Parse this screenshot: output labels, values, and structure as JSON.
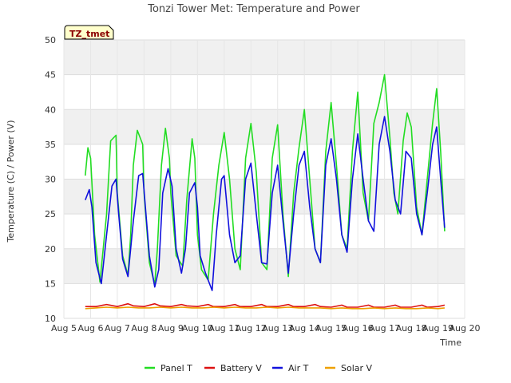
{
  "chart_data": {
    "type": "line",
    "title": "Tonzi Tower Met: Temperature and Power",
    "xlabel": "Time",
    "ylabel": "Temperature (C) / Power (V)",
    "ylim": [
      10,
      50
    ],
    "xlim": [
      5,
      20
    ],
    "yticks": [
      10,
      15,
      20,
      25,
      30,
      35,
      40,
      45,
      50
    ],
    "xticks": [
      5,
      6,
      7,
      8,
      9,
      10,
      11,
      12,
      13,
      14,
      15,
      16,
      17,
      18,
      19,
      20
    ],
    "xtick_labels": [
      "Aug 5",
      "Aug 6",
      "Aug 7",
      "Aug 8",
      "Aug 9",
      "Aug 10",
      "Aug 11",
      "Aug 12",
      "Aug 13",
      "Aug 14",
      "Aug 15",
      "Aug 16",
      "Aug 17",
      "Aug 18",
      "Aug 19",
      "Aug 20"
    ],
    "badge": "TZ_tmet",
    "grid": true,
    "legend_position": "bottom",
    "series": [
      {
        "name": "Panel T",
        "color": "#22dd22",
        "x": [
          5.8,
          5.9,
          6.0,
          6.15,
          6.35,
          6.6,
          6.75,
          6.95,
          7.0,
          7.2,
          7.4,
          7.5,
          7.6,
          7.75,
          7.95,
          8.0,
          8.2,
          8.4,
          8.5,
          8.65,
          8.8,
          8.95,
          9.0,
          9.2,
          9.45,
          9.6,
          9.8,
          9.9,
          10.0,
          10.15,
          10.4,
          10.6,
          10.8,
          11.0,
          11.2,
          11.4,
          11.6,
          11.8,
          12.0,
          12.2,
          12.4,
          12.6,
          12.8,
          13.0,
          13.2,
          13.4,
          13.6,
          13.8,
          14.0,
          14.2,
          14.4,
          14.6,
          14.8,
          15.0,
          15.2,
          15.4,
          15.6,
          15.8,
          16.0,
          16.2,
          16.4,
          16.6,
          16.8,
          17.0,
          17.2,
          17.35,
          17.5,
          17.7,
          17.85,
          18.0,
          18.2,
          18.4,
          18.6,
          18.8,
          18.95,
          19.1,
          19.25
        ],
        "y": [
          30.5,
          34.5,
          33.0,
          22.0,
          15.2,
          25.0,
          35.5,
          36.3,
          28.0,
          19.0,
          16.2,
          22.0,
          32.0,
          37.0,
          35.0,
          28.0,
          18.0,
          14.8,
          20.0,
          32.0,
          37.3,
          33.0,
          28.0,
          19.0,
          17.5,
          27.0,
          35.8,
          33.0,
          22.0,
          17.0,
          15.5,
          25.0,
          32.0,
          36.7,
          30.0,
          20.0,
          17.0,
          33.0,
          38.0,
          31.0,
          18.0,
          17.0,
          33.0,
          37.8,
          25.0,
          16.0,
          28.0,
          34.5,
          40.0,
          30.0,
          20.0,
          18.0,
          34.0,
          41.0,
          32.0,
          22.0,
          20.0,
          34.0,
          42.5,
          28.0,
          24.0,
          38.0,
          41.0,
          45.0,
          36.0,
          28.0,
          25.0,
          35.5,
          39.5,
          37.5,
          26.0,
          22.0,
          30.0,
          38.0,
          43.0,
          34.0,
          22.5
        ]
      },
      {
        "name": "Battery V",
        "color": "#dd1111",
        "x": [
          5.8,
          6.2,
          6.6,
          7.0,
          7.4,
          7.6,
          8.0,
          8.4,
          8.6,
          9.0,
          9.4,
          9.6,
          10.0,
          10.4,
          10.6,
          11.0,
          11.4,
          11.6,
          12.0,
          12.4,
          12.6,
          13.0,
          13.4,
          13.6,
          14.0,
          14.4,
          14.6,
          15.0,
          15.4,
          15.6,
          16.0,
          16.4,
          16.6,
          17.0,
          17.4,
          17.6,
          18.0,
          18.4,
          18.6,
          19.0,
          19.25
        ],
        "y": [
          11.7,
          11.7,
          12.0,
          11.7,
          12.1,
          11.8,
          11.7,
          12.1,
          11.8,
          11.7,
          12.0,
          11.8,
          11.7,
          12.0,
          11.7,
          11.7,
          12.0,
          11.7,
          11.7,
          12.0,
          11.7,
          11.7,
          12.0,
          11.7,
          11.7,
          12.0,
          11.7,
          11.6,
          11.9,
          11.6,
          11.6,
          11.9,
          11.6,
          11.6,
          11.9,
          11.6,
          11.6,
          11.9,
          11.6,
          11.7,
          11.9
        ]
      },
      {
        "name": "Air T",
        "color": "#1111dd",
        "x": [
          5.8,
          5.95,
          6.05,
          6.2,
          6.4,
          6.6,
          6.8,
          6.95,
          7.05,
          7.2,
          7.4,
          7.6,
          7.8,
          7.95,
          8.05,
          8.2,
          8.4,
          8.55,
          8.7,
          8.9,
          9.05,
          9.2,
          9.4,
          9.55,
          9.7,
          9.9,
          10.0,
          10.1,
          10.3,
          10.55,
          10.7,
          10.9,
          11.0,
          11.2,
          11.4,
          11.6,
          11.8,
          12.0,
          12.2,
          12.4,
          12.6,
          12.8,
          13.0,
          13.2,
          13.4,
          13.6,
          13.8,
          14.0,
          14.2,
          14.4,
          14.6,
          14.8,
          15.0,
          15.2,
          15.4,
          15.6,
          15.8,
          16.0,
          16.2,
          16.4,
          16.6,
          16.8,
          17.0,
          17.2,
          17.4,
          17.6,
          17.8,
          18.0,
          18.2,
          18.4,
          18.6,
          18.8,
          18.95,
          19.1,
          19.25
        ],
        "y": [
          27.0,
          28.5,
          26.0,
          18.0,
          15.0,
          22.0,
          29.0,
          30.0,
          25.0,
          18.5,
          16.0,
          24.0,
          30.5,
          30.8,
          26.0,
          19.0,
          14.5,
          17.0,
          28.0,
          31.5,
          29.0,
          20.0,
          16.5,
          20.0,
          28.0,
          29.5,
          26.0,
          19.0,
          16.5,
          14.0,
          22.0,
          30.0,
          30.5,
          22.0,
          18.0,
          19.0,
          30.0,
          32.3,
          25.0,
          18.0,
          17.8,
          28.0,
          32.0,
          24.0,
          16.5,
          25.0,
          32.0,
          34.0,
          26.0,
          20.0,
          18.0,
          32.0,
          35.8,
          30.0,
          22.0,
          19.5,
          30.0,
          36.5,
          30.0,
          24.0,
          22.5,
          35.0,
          39.0,
          34.0,
          27.0,
          25.0,
          34.0,
          33.0,
          25.0,
          22.0,
          28.0,
          35.0,
          37.5,
          30.0,
          23.0
        ]
      },
      {
        "name": "Solar V",
        "color": "#eea000",
        "x": [
          5.8,
          6.2,
          6.6,
          7.0,
          7.4,
          7.8,
          8.2,
          8.6,
          9.0,
          9.4,
          9.8,
          10.2,
          10.6,
          11.0,
          11.4,
          11.8,
          12.2,
          12.6,
          13.0,
          13.4,
          13.8,
          14.2,
          14.6,
          15.0,
          15.4,
          15.8,
          16.2,
          16.6,
          17.0,
          17.4,
          17.8,
          18.2,
          18.6,
          19.0,
          19.25
        ],
        "y": [
          11.4,
          11.5,
          11.6,
          11.5,
          11.6,
          11.5,
          11.5,
          11.6,
          11.5,
          11.6,
          11.5,
          11.5,
          11.6,
          11.5,
          11.6,
          11.5,
          11.5,
          11.6,
          11.5,
          11.6,
          11.5,
          11.5,
          11.5,
          11.4,
          11.5,
          11.4,
          11.4,
          11.5,
          11.4,
          11.5,
          11.4,
          11.4,
          11.5,
          11.4,
          11.5
        ]
      }
    ]
  }
}
